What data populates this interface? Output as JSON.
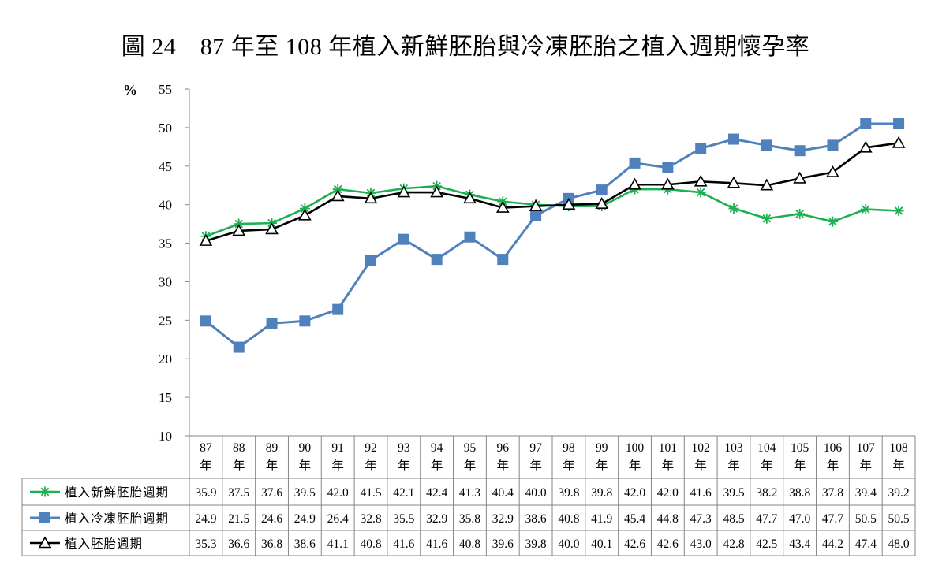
{
  "chart_data": {
    "type": "line",
    "title": "圖 24　87 年至 108 年植入新鮮胚胎與冷凍胚胎之植入週期懷孕率",
    "ylabel": "%",
    "ylim": [
      10,
      55
    ],
    "yticks": [
      "10",
      "15",
      "20",
      "25",
      "30",
      "35",
      "40",
      "45",
      "50",
      "55"
    ],
    "grid": false,
    "legend_position": "data-table-left",
    "categories": [
      [
        "87",
        "年"
      ],
      [
        "88",
        "年"
      ],
      [
        "89",
        "年"
      ],
      [
        "90",
        "年"
      ],
      [
        "91",
        "年"
      ],
      [
        "92",
        "年"
      ],
      [
        "93",
        "年"
      ],
      [
        "94",
        "年"
      ],
      [
        "95",
        "年"
      ],
      [
        "96",
        "年"
      ],
      [
        "97",
        "年"
      ],
      [
        "98",
        "年"
      ],
      [
        "99",
        "年"
      ],
      [
        "100",
        "年"
      ],
      [
        "101",
        "年"
      ],
      [
        "102",
        "年"
      ],
      [
        "103",
        "年"
      ],
      [
        "104",
        "年"
      ],
      [
        "105",
        "年"
      ],
      [
        "106",
        "年"
      ],
      [
        "107",
        "年"
      ],
      [
        "108",
        "年"
      ]
    ],
    "series": [
      {
        "name": "植入新鮮胚胎週期",
        "color": "#1DB050",
        "marker": "asterisk",
        "values": [
          35.9,
          37.5,
          37.6,
          39.5,
          42.0,
          41.5,
          42.1,
          42.4,
          41.3,
          40.4,
          40.0,
          39.8,
          39.8,
          42.0,
          42.0,
          41.6,
          39.5,
          38.2,
          38.8,
          37.8,
          39.4,
          39.2
        ],
        "labels": [
          "35.9",
          "37.5",
          "37.6",
          "39.5",
          "42.0",
          "41.5",
          "42.1",
          "42.4",
          "41.3",
          "40.4",
          "40.0",
          "39.8",
          "39.8",
          "42.0",
          "42.0",
          "41.6",
          "39.5",
          "38.2",
          "38.8",
          "37.8",
          "39.4",
          "39.2"
        ]
      },
      {
        "name": "植入冷凍胚胎週期",
        "color": "#4F81BD",
        "marker": "square",
        "values": [
          24.9,
          21.5,
          24.6,
          24.9,
          26.4,
          32.8,
          35.5,
          32.9,
          35.8,
          32.9,
          38.6,
          40.8,
          41.9,
          45.4,
          44.8,
          47.3,
          48.5,
          47.7,
          47.0,
          47.7,
          50.5,
          50.5
        ],
        "labels": [
          "24.9",
          "21.5",
          "24.6",
          "24.9",
          "26.4",
          "32.8",
          "35.5",
          "32.9",
          "35.8",
          "32.9",
          "38.6",
          "40.8",
          "41.9",
          "45.4",
          "44.8",
          "47.3",
          "48.5",
          "47.7",
          "47.0",
          "47.7",
          "50.5",
          "50.5"
        ]
      },
      {
        "name": "植入胚胎週期",
        "color": "#000000",
        "marker": "triangle",
        "values": [
          35.3,
          36.6,
          36.8,
          38.6,
          41.1,
          40.8,
          41.6,
          41.6,
          40.8,
          39.6,
          39.8,
          40.0,
          40.1,
          42.6,
          42.6,
          43.0,
          42.8,
          42.5,
          43.4,
          44.2,
          47.4,
          48.0
        ],
        "labels": [
          "35.3",
          "36.6",
          "36.8",
          "38.6",
          "41.1",
          "40.8",
          "41.6",
          "41.6",
          "40.8",
          "39.6",
          "39.8",
          "40.0",
          "40.1",
          "42.6",
          "42.6",
          "43.0",
          "42.8",
          "42.5",
          "43.4",
          "44.2",
          "47.4",
          "48.0"
        ]
      }
    ]
  }
}
